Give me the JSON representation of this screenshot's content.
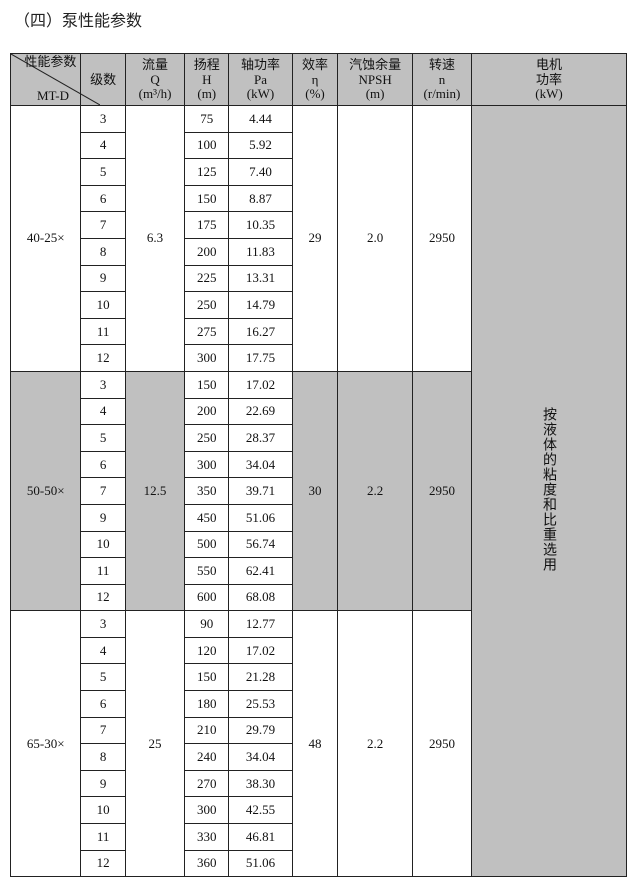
{
  "title": "（四）泵性能参数",
  "headers": {
    "diag_top": "性能参数",
    "diag_bottom": "MT-D",
    "stages": "级数",
    "flow": [
      "流量",
      "Q",
      "(m³/h)"
    ],
    "head": [
      "扬程",
      "H",
      "(m)"
    ],
    "shaft": [
      "轴功率",
      "Pa",
      "(kW)"
    ],
    "eff": [
      "效率",
      "η",
      "(%)"
    ],
    "npsh": [
      "汽蚀余量",
      "NPSH",
      "(m)"
    ],
    "speed": [
      "转速",
      "n",
      "(r/min)"
    ],
    "motor": [
      "电机",
      "功率",
      "(kW)"
    ]
  },
  "motor_note": "按液体的粘度和比重选用",
  "groups": [
    {
      "model": "40-25×",
      "flow": "6.3",
      "eff": "29",
      "npsh": "2.0",
      "speed": "2950",
      "shaded": false,
      "rows": [
        [
          "3",
          "75",
          "4.44"
        ],
        [
          "4",
          "100",
          "5.92"
        ],
        [
          "5",
          "125",
          "7.40"
        ],
        [
          "6",
          "150",
          "8.87"
        ],
        [
          "7",
          "175",
          "10.35"
        ],
        [
          "8",
          "200",
          "11.83"
        ],
        [
          "9",
          "225",
          "13.31"
        ],
        [
          "10",
          "250",
          "14.79"
        ],
        [
          "11",
          "275",
          "16.27"
        ],
        [
          "12",
          "300",
          "17.75"
        ]
      ]
    },
    {
      "model": "50-50×",
      "flow": "12.5",
      "eff": "30",
      "npsh": "2.2",
      "speed": "2950",
      "shaded": true,
      "rows": [
        [
          "3",
          "150",
          "17.02"
        ],
        [
          "4",
          "200",
          "22.69"
        ],
        [
          "5",
          "250",
          "28.37"
        ],
        [
          "6",
          "300",
          "34.04"
        ],
        [
          "7",
          "350",
          "39.71"
        ],
        [
          "9",
          "450",
          "51.06"
        ],
        [
          "10",
          "500",
          "56.74"
        ],
        [
          "11",
          "550",
          "62.41"
        ],
        [
          "12",
          "600",
          "68.08"
        ]
      ]
    },
    {
      "model": "65-30×",
      "flow": "25",
      "eff": "48",
      "npsh": "2.2",
      "speed": "2950",
      "shaded": false,
      "rows": [
        [
          "3",
          "90",
          "12.77"
        ],
        [
          "4",
          "120",
          "17.02"
        ],
        [
          "5",
          "150",
          "21.28"
        ],
        [
          "6",
          "180",
          "25.53"
        ],
        [
          "7",
          "210",
          "29.79"
        ],
        [
          "8",
          "240",
          "34.04"
        ],
        [
          "9",
          "270",
          "38.30"
        ],
        [
          "10",
          "300",
          "42.55"
        ],
        [
          "11",
          "330",
          "46.81"
        ],
        [
          "12",
          "360",
          "51.06"
        ]
      ]
    }
  ]
}
